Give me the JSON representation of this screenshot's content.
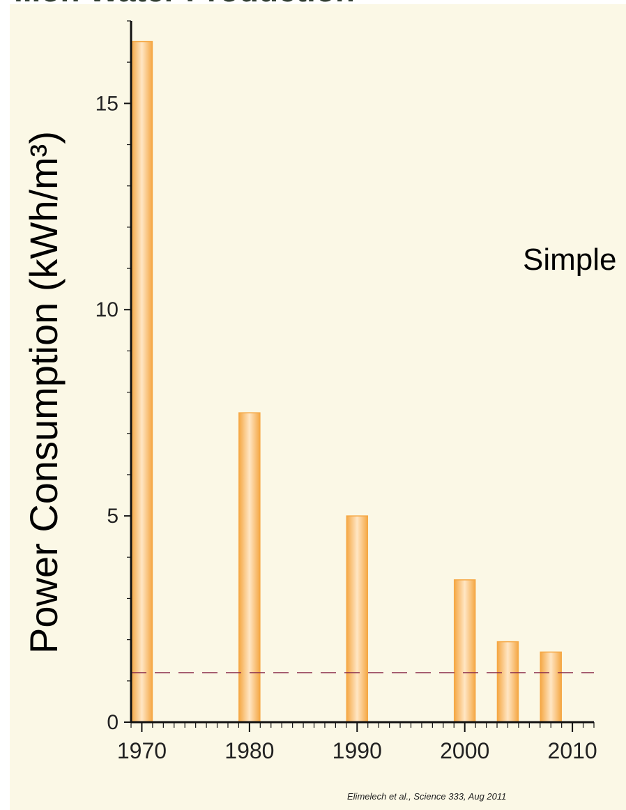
{
  "slide": {
    "heading_fragment": "...on Water Production",
    "side_text_fragment": "Simple",
    "citation": "Elimelech et al., Science 333, Aug 2011"
  },
  "colors": {
    "panel_background": "#fbf8e6",
    "bar_fill_edge": "#f5a845",
    "bar_fill_center": "#ffe6c4",
    "reference_line": "#8a2a4a",
    "axis": "#111111"
  },
  "chart_data": {
    "type": "bar",
    "title": "",
    "xlabel": "",
    "ylabel": "Power Consumption (kWh/m³)",
    "xlim": [
      1969,
      2012
    ],
    "ylim": [
      0,
      17
    ],
    "x_ticks": [
      1970,
      1980,
      1990,
      2000,
      2010
    ],
    "y_ticks": [
      0,
      5,
      10,
      15
    ],
    "x_tick_labels": [
      "1970",
      "1980",
      "1990",
      "2000",
      "2010"
    ],
    "y_tick_labels": [
      "0",
      "5",
      "10",
      "15"
    ],
    "grid": false,
    "legend": "none",
    "x": [
      1970,
      1980,
      1990,
      2000,
      2004,
      2008
    ],
    "values": [
      16.5,
      7.5,
      5.0,
      3.45,
      1.95,
      1.7
    ],
    "reference_line": {
      "y": 1.2,
      "style": "dashed"
    }
  }
}
